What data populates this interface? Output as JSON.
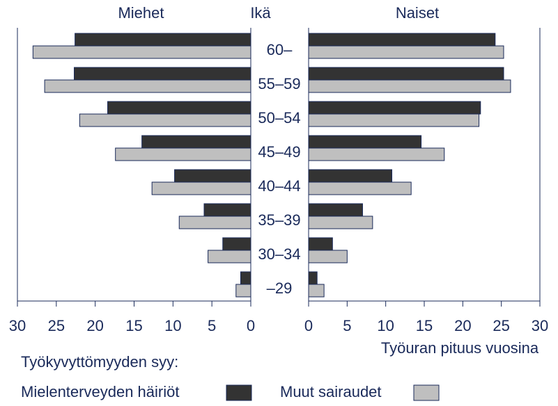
{
  "chart_data": {
    "type": "bar",
    "ylabel": "Ikä",
    "categories": [
      "60–",
      "55–59",
      "50–54",
      "45–49",
      "40–44",
      "35–39",
      "30–34",
      "–29"
    ],
    "legend_title": "Työkyvyttömyyden syy:",
    "series": [
      {
        "name": "Mielenterveyden häiriöt",
        "color": "#333333"
      },
      {
        "name": "Muut sairaudet",
        "color": "#bfbfbf"
      }
    ],
    "panels": [
      {
        "title": "Miehet",
        "xlim": [
          30,
          0
        ],
        "xticks": [
          30,
          25,
          20,
          15,
          10,
          5,
          0
        ],
        "values": [
          [
            22.6,
            22.7,
            18.4,
            14.0,
            9.8,
            6.0,
            3.6,
            1.3
          ],
          [
            28.0,
            26.5,
            22.0,
            17.4,
            12.7,
            9.2,
            5.5,
            1.9
          ]
        ]
      },
      {
        "title": "Naiset",
        "xlabel": "Työuran pituus vuosina",
        "xlim": [
          0,
          30
        ],
        "xticks": [
          0,
          5,
          10,
          15,
          20,
          25,
          30
        ],
        "values": [
          [
            24.2,
            25.3,
            22.3,
            14.6,
            10.8,
            7.0,
            3.1,
            1.1
          ],
          [
            25.3,
            26.2,
            22.1,
            17.6,
            13.3,
            8.3,
            5.0,
            2.0
          ]
        ]
      }
    ]
  }
}
